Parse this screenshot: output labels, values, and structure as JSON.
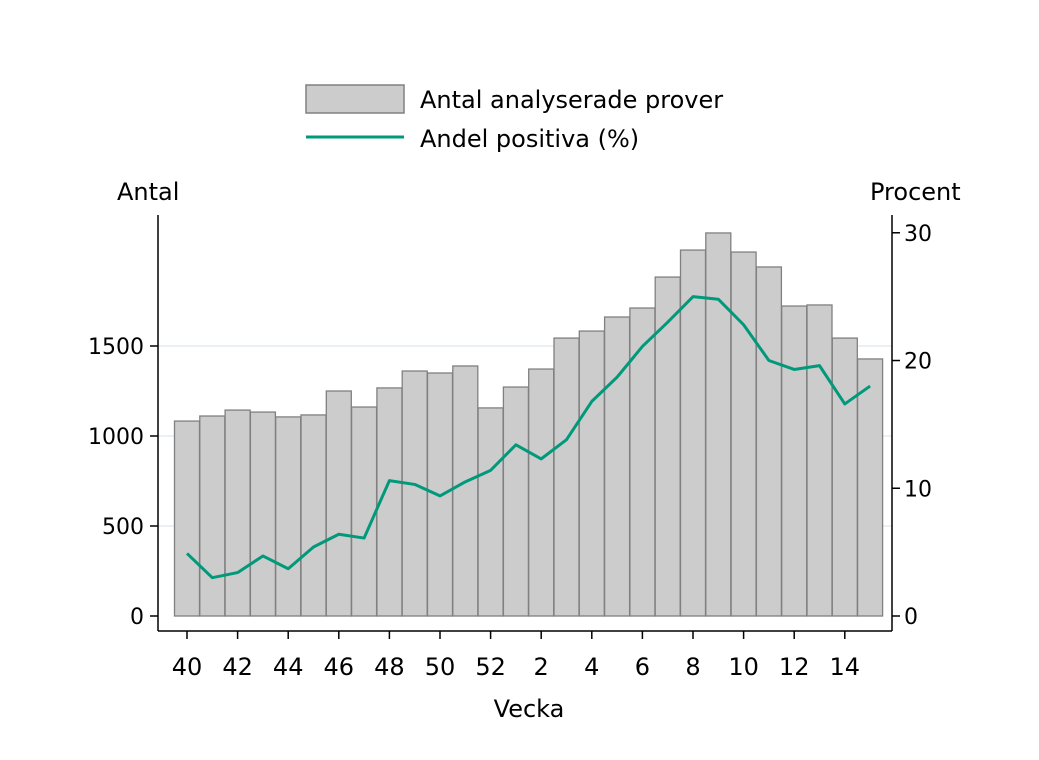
{
  "chart_data": {
    "type": "bar+line",
    "xlabel": "Vecka",
    "ylabel_left": "Antal",
    "ylabel_right": "Procent",
    "categories": [
      "40",
      "41",
      "42",
      "43",
      "44",
      "45",
      "46",
      "47",
      "48",
      "49",
      "50",
      "51",
      "52",
      "1",
      "2",
      "3",
      "4",
      "5",
      "6",
      "7",
      "8",
      "9",
      "10",
      "11",
      "12",
      "13",
      "14",
      "15"
    ],
    "x_tick_labels": [
      "40",
      "42",
      "44",
      "46",
      "48",
      "50",
      "52",
      "2",
      "4",
      "6",
      "8",
      "10",
      "12",
      "14"
    ],
    "y_left_ticks": [
      0,
      500,
      1000,
      1500
    ],
    "y_right_ticks": [
      0,
      10,
      20,
      30
    ],
    "ylim_left": [
      0,
      2200
    ],
    "ylim_right": [
      0,
      31
    ],
    "grid": "horizontal",
    "legend_position": "top",
    "series": [
      {
        "name": "Antal analyserade prover",
        "type": "bar",
        "axis": "left",
        "color": "#cccccc",
        "values": [
          1083,
          1111,
          1144,
          1133,
          1106,
          1117,
          1250,
          1161,
          1267,
          1361,
          1350,
          1389,
          1156,
          1272,
          1372,
          1544,
          1583,
          1661,
          1711,
          1883,
          2033,
          2128,
          2022,
          1939,
          1722,
          1728,
          1544,
          1428
        ]
      },
      {
        "name": "Andel positiva (%)",
        "type": "line",
        "axis": "right",
        "color": "#00997a",
        "values": [
          4.9,
          3.0,
          3.4,
          4.7,
          3.7,
          5.4,
          6.4,
          6.1,
          10.6,
          10.3,
          9.4,
          10.5,
          11.4,
          13.4,
          12.3,
          13.8,
          16.8,
          18.7,
          21.1,
          23.0,
          25.0,
          24.8,
          22.8,
          20.0,
          19.3,
          19.6,
          16.6,
          18.0
        ]
      }
    ]
  }
}
